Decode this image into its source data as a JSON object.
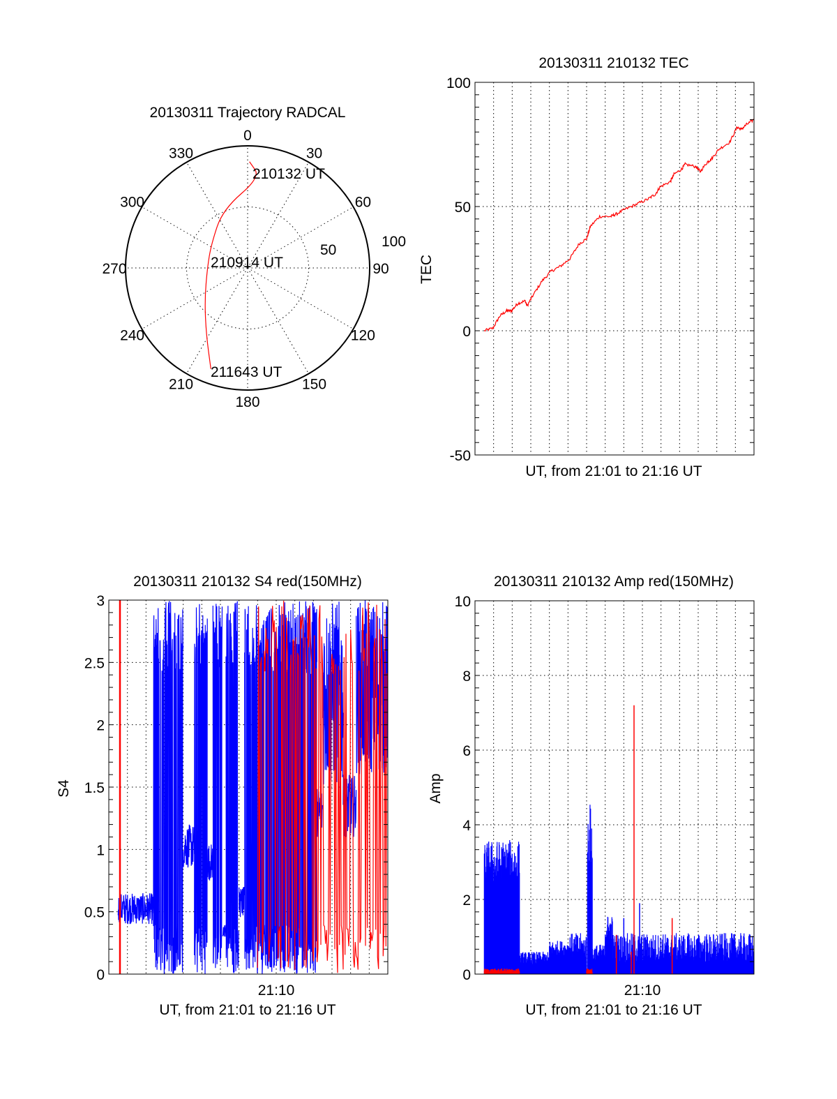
{
  "colors": {
    "red": "#ff0000",
    "blue": "#0000ff",
    "axis": "#000000"
  },
  "chart_data": [
    {
      "id": "polar",
      "type": "polar-line",
      "title": "20130311 Trajectory RADCAL",
      "angle_ticks": [
        "0",
        "30",
        "60",
        "90",
        "120",
        "150",
        "180",
        "210",
        "240",
        "270",
        "300",
        "330"
      ],
      "radial_ticks": [
        "50",
        "100"
      ],
      "rlim": [
        0,
        100
      ],
      "series": [
        {
          "name": "trajectory",
          "color": "red",
          "points": [
            [
              1,
              87
            ],
            [
              8,
              75
            ],
            [
              337,
              52
            ],
            [
              303,
              35.5
            ],
            [
              270,
              33
            ],
            [
              233,
              44
            ],
            [
              212,
              64
            ],
            [
              200,
              88
            ]
          ]
        }
      ],
      "annotations": [
        "210132 UT",
        "210914 UT",
        "211643 UT"
      ]
    },
    {
      "id": "tec",
      "type": "line",
      "title": "20130311 210132 TEC",
      "xlabel": "UT, from 21:01 to 21:16 UT",
      "ylabel": "TEC",
      "xlim": [
        0,
        15
      ],
      "ylim": [
        -50,
        100
      ],
      "yticks": [
        "100",
        "50",
        "0",
        "-50"
      ],
      "ytick_values": [
        100,
        50,
        0,
        -50
      ],
      "grid": true,
      "series": [
        {
          "name": "TEC",
          "color": "red",
          "x": [
            0.5,
            0.96,
            1.34,
            1.7,
            1.96,
            2.3,
            2.7,
            2.8,
            3.1,
            3.6,
            4.1,
            4.6,
            5.1,
            5.6,
            6.0,
            6.2,
            6.7,
            7.3,
            7.6,
            8.1,
            8.7,
            9.3,
            9.7,
            9.96,
            10.5,
            10.7,
            11.1,
            11.3,
            11.9,
            12.1,
            12.5,
            12.7,
            13.1,
            13.7,
            14.1,
            14.3,
            14.6,
            15.0
          ],
          "y": [
            0,
            1,
            6,
            8,
            8,
            11,
            12,
            10,
            14,
            20,
            24,
            26,
            29,
            35,
            37,
            42,
            46,
            46,
            47,
            49,
            51,
            53,
            55,
            58,
            60,
            63,
            65,
            67,
            66,
            64,
            68,
            69,
            73,
            76,
            82,
            81,
            83,
            85
          ]
        }
      ]
    },
    {
      "id": "s4",
      "type": "line",
      "title": "20130311 210132 S4 red(150MHz)",
      "xlabel": "UT, from 21:01 to 21:16 UT",
      "ylabel": "S4",
      "xlim": [
        0,
        15
      ],
      "ylim": [
        0,
        3
      ],
      "xtick_label": "21:10",
      "xtick_value": 9,
      "yticks": [
        "3",
        "2.5",
        "2",
        "1.5",
        "1",
        "0.5",
        "0"
      ],
      "ytick_values": [
        3,
        2.5,
        2,
        1.5,
        1,
        0.5,
        0
      ],
      "grid": true,
      "series": [
        {
          "name": "blue",
          "color": "blue",
          "envelope": [
            [
              0.5,
              2.4,
              0.4,
              0.65
            ],
            [
              2.4,
              4.0,
              0,
              3
            ],
            [
              4.0,
              4.6,
              0.85,
              1.2
            ],
            [
              4.6,
              5.3,
              0,
              3
            ],
            [
              5.3,
              5.6,
              0.75,
              1.05
            ],
            [
              5.6,
              6.1,
              0,
              3
            ],
            [
              6.1,
              6.3,
              0.3,
              0.4
            ],
            [
              6.3,
              7.0,
              0,
              3
            ],
            [
              7.0,
              7.3,
              0.45,
              0.7
            ],
            [
              7.3,
              11.2,
              0,
              3
            ],
            [
              11.2,
              11.5,
              1.1,
              1.5
            ],
            [
              11.5,
              12.6,
              1.5,
              3
            ],
            [
              12.6,
              13.3,
              1.1,
              1.6
            ],
            [
              13.3,
              15.0,
              1.6,
              3
            ]
          ]
        },
        {
          "name": "red",
          "color": "red",
          "envelope": [
            [
              0.55,
              0.62,
              0,
              3
            ],
            [
              8.0,
              15.0,
              0,
              3
            ]
          ]
        }
      ]
    },
    {
      "id": "amp",
      "type": "bar",
      "title": "20130311 210132 Amp red(150MHz)",
      "xlabel": "UT, from 21:01 to 21:16 UT",
      "ylabel": "Amp",
      "xlim": [
        0,
        15
      ],
      "ylim": [
        0,
        10
      ],
      "xtick_label": "21:10",
      "xtick_value": 9,
      "yticks": [
        "10",
        "8",
        "6",
        "4",
        "2",
        "0"
      ],
      "ytick_values": [
        10,
        8,
        6,
        4,
        2,
        0
      ],
      "grid": true,
      "series": [
        {
          "name": "blue",
          "color": "blue",
          "envelope": [
            [
              0.5,
              2.4,
              2.4,
              3.6
            ],
            [
              2.4,
              4.0,
              0.25,
              0.6
            ],
            [
              4.0,
              5.0,
              0.5,
              0.9
            ],
            [
              5.0,
              6.0,
              0.4,
              1.1
            ],
            [
              6.05,
              6.3,
              2.8,
              4.6
            ],
            [
              6.3,
              7.0,
              0.3,
              0.8
            ],
            [
              7.0,
              7.4,
              0.9,
              1.6
            ],
            [
              7.4,
              15.0,
              0.3,
              1.1
            ]
          ],
          "spikes": [
            [
              8.0,
              1.5
            ],
            [
              8.85,
              1.9
            ],
            [
              6.3,
              3.1
            ]
          ]
        },
        {
          "name": "red",
          "color": "red",
          "envelope": [
            [
              0.5,
              2.4,
              0.05,
              0.15
            ],
            [
              6.0,
              6.3,
              0.05,
              0.15
            ]
          ],
          "spikes": [
            [
              8.55,
              7.2
            ],
            [
              7.6,
              1.05
            ],
            [
              10.6,
              1.5
            ],
            [
              8.4,
              0.6
            ]
          ]
        }
      ]
    }
  ]
}
